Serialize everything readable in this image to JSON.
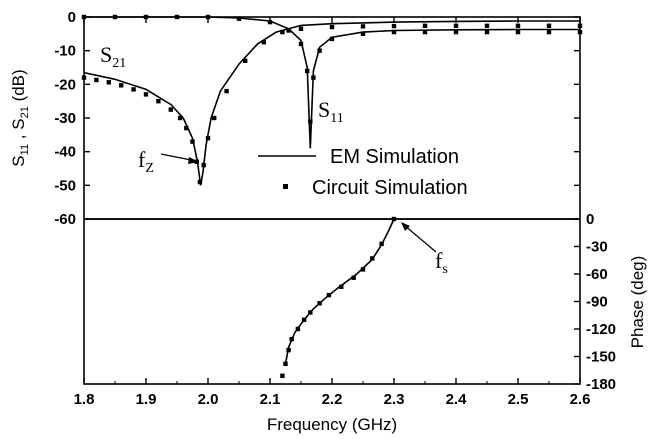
{
  "chart_data": {
    "type": "line",
    "x_axis": {
      "label": "Frequency (GHz)",
      "range": [
        1.8,
        2.6
      ],
      "ticks": [
        "1.8",
        "1.9",
        "2.0",
        "2.1",
        "2.2",
        "2.3",
        "2.4",
        "2.5",
        "2.6"
      ]
    },
    "top_panel": {
      "y_axis": {
        "label_parts": [
          "S",
          "11",
          " , S",
          "21",
          " (dB)"
        ],
        "range": [
          -60,
          0
        ],
        "ticks": [
          "0",
          "-10",
          "-20",
          "-30",
          "-40",
          "-50",
          "-60"
        ]
      },
      "series": [
        {
          "name": "EM Simulation",
          "style": "line",
          "curves": {
            "S21": [
              [
                1.8,
                -16.5
              ],
              [
                1.85,
                -18.5
              ],
              [
                1.9,
                -21.5
              ],
              [
                1.94,
                -26
              ],
              [
                1.96,
                -30
              ],
              [
                1.975,
                -36
              ],
              [
                1.983,
                -43
              ],
              [
                1.988,
                -50
              ],
              [
                1.992,
                -46
              ],
              [
                1.997,
                -38
              ],
              [
                2.005,
                -30
              ],
              [
                2.02,
                -22
              ],
              [
                2.05,
                -14
              ],
              [
                2.08,
                -8
              ],
              [
                2.11,
                -4.5
              ],
              [
                2.15,
                -2.5
              ],
              [
                2.2,
                -2
              ],
              [
                2.3,
                -1.5
              ],
              [
                2.4,
                -1.3
              ],
              [
                2.5,
                -1.2
              ],
              [
                2.6,
                -1.2
              ]
            ],
            "S11": [
              [
                1.8,
                0
              ],
              [
                1.9,
                0
              ],
              [
                2.0,
                0
              ],
              [
                2.05,
                -0.3
              ],
              [
                2.1,
                -1.2
              ],
              [
                2.13,
                -3.5
              ],
              [
                2.15,
                -7
              ],
              [
                2.16,
                -15
              ],
              [
                2.165,
                -39
              ],
              [
                2.17,
                -16
              ],
              [
                2.18,
                -9
              ],
              [
                2.2,
                -6
              ],
              [
                2.25,
                -4.5
              ],
              [
                2.3,
                -4
              ],
              [
                2.4,
                -3.8
              ],
              [
                2.5,
                -3.7
              ],
              [
                2.6,
                -3.7
              ]
            ]
          }
        },
        {
          "name": "Circuit Simulation",
          "style": "markers",
          "curves": {
            "S21": [
              [
                1.8,
                -18
              ],
              [
                1.82,
                -18.7
              ],
              [
                1.84,
                -19.4
              ],
              [
                1.86,
                -20.3
              ],
              [
                1.88,
                -21.5
              ],
              [
                1.9,
                -23
              ],
              [
                1.92,
                -25
              ],
              [
                1.94,
                -27.5
              ],
              [
                1.955,
                -30
              ],
              [
                1.965,
                -33
              ],
              [
                1.975,
                -37
              ],
              [
                1.982,
                -43
              ],
              [
                1.987,
                -49
              ],
              [
                1.993,
                -44
              ],
              [
                2.0,
                -36
              ],
              [
                2.01,
                -30
              ],
              [
                2.03,
                -22
              ],
              [
                2.06,
                -13
              ],
              [
                2.09,
                -7.5
              ],
              [
                2.12,
                -4.5
              ],
              [
                2.15,
                -3.5
              ],
              [
                2.2,
                -3
              ],
              [
                2.25,
                -2.8
              ],
              [
                2.3,
                -2.7
              ],
              [
                2.35,
                -2.6
              ],
              [
                2.4,
                -2.6
              ],
              [
                2.45,
                -2.6
              ],
              [
                2.5,
                -2.6
              ],
              [
                2.55,
                -2.6
              ],
              [
                2.6,
                -2.6
              ]
            ],
            "S11": [
              [
                1.8,
                0
              ],
              [
                1.85,
                0
              ],
              [
                1.9,
                0
              ],
              [
                1.95,
                0
              ],
              [
                2.0,
                0
              ],
              [
                2.05,
                -0.5
              ],
              [
                2.1,
                -1.5
              ],
              [
                2.13,
                -4
              ],
              [
                2.15,
                -8
              ],
              [
                2.16,
                -16
              ],
              [
                2.165,
                -31
              ],
              [
                2.17,
                -18
              ],
              [
                2.18,
                -10
              ],
              [
                2.2,
                -6.5
              ],
              [
                2.25,
                -5
              ],
              [
                2.3,
                -4.5
              ],
              [
                2.35,
                -4.5
              ],
              [
                2.4,
                -4.5
              ],
              [
                2.45,
                -4.5
              ],
              [
                2.5,
                -4.5
              ],
              [
                2.55,
                -4.5
              ],
              [
                2.6,
                -4.5
              ]
            ]
          }
        }
      ],
      "annotations": {
        "S21": [
          "S",
          "21"
        ],
        "S11": [
          "S",
          "11"
        ],
        "fz": [
          "f",
          "Z"
        ]
      }
    },
    "bottom_panel": {
      "y_axis": {
        "label": "Phase (deg)",
        "range": [
          -180,
          0
        ],
        "ticks": [
          "0",
          "-30",
          "-60",
          "-90",
          "-120",
          "-150",
          "-180"
        ]
      },
      "series": [
        {
          "name": "EM Simulation",
          "style": "line",
          "points": [
            [
              2.125,
              -158
            ],
            [
              2.13,
              -140
            ],
            [
              2.14,
              -124
            ],
            [
              2.155,
              -110
            ],
            [
              2.17,
              -98
            ],
            [
              2.19,
              -86
            ],
            [
              2.21,
              -75
            ],
            [
              2.24,
              -60
            ],
            [
              2.265,
              -44
            ],
            [
              2.28,
              -28
            ],
            [
              2.292,
              -12
            ],
            [
              2.3,
              0
            ]
          ]
        },
        {
          "name": "Circuit Simulation",
          "style": "markers",
          "points": [
            [
              2.12,
              -171
            ],
            [
              2.125,
              -158
            ],
            [
              2.13,
              -143
            ],
            [
              2.135,
              -131
            ],
            [
              2.145,
              -120
            ],
            [
              2.155,
              -110
            ],
            [
              2.165,
              -102
            ],
            [
              2.18,
              -92
            ],
            [
              2.195,
              -83
            ],
            [
              2.215,
              -74
            ],
            [
              2.235,
              -64
            ],
            [
              2.25,
              -55
            ],
            [
              2.265,
              -43
            ],
            [
              2.28,
              -27
            ],
            [
              2.3,
              0
            ]
          ]
        }
      ],
      "annotations": {
        "fs": [
          "f",
          "s"
        ]
      }
    },
    "legend": {
      "placement": "lower-right of top panel",
      "entries": [
        "EM Simulation",
        "Circuit Simulation"
      ]
    },
    "grid": false
  }
}
